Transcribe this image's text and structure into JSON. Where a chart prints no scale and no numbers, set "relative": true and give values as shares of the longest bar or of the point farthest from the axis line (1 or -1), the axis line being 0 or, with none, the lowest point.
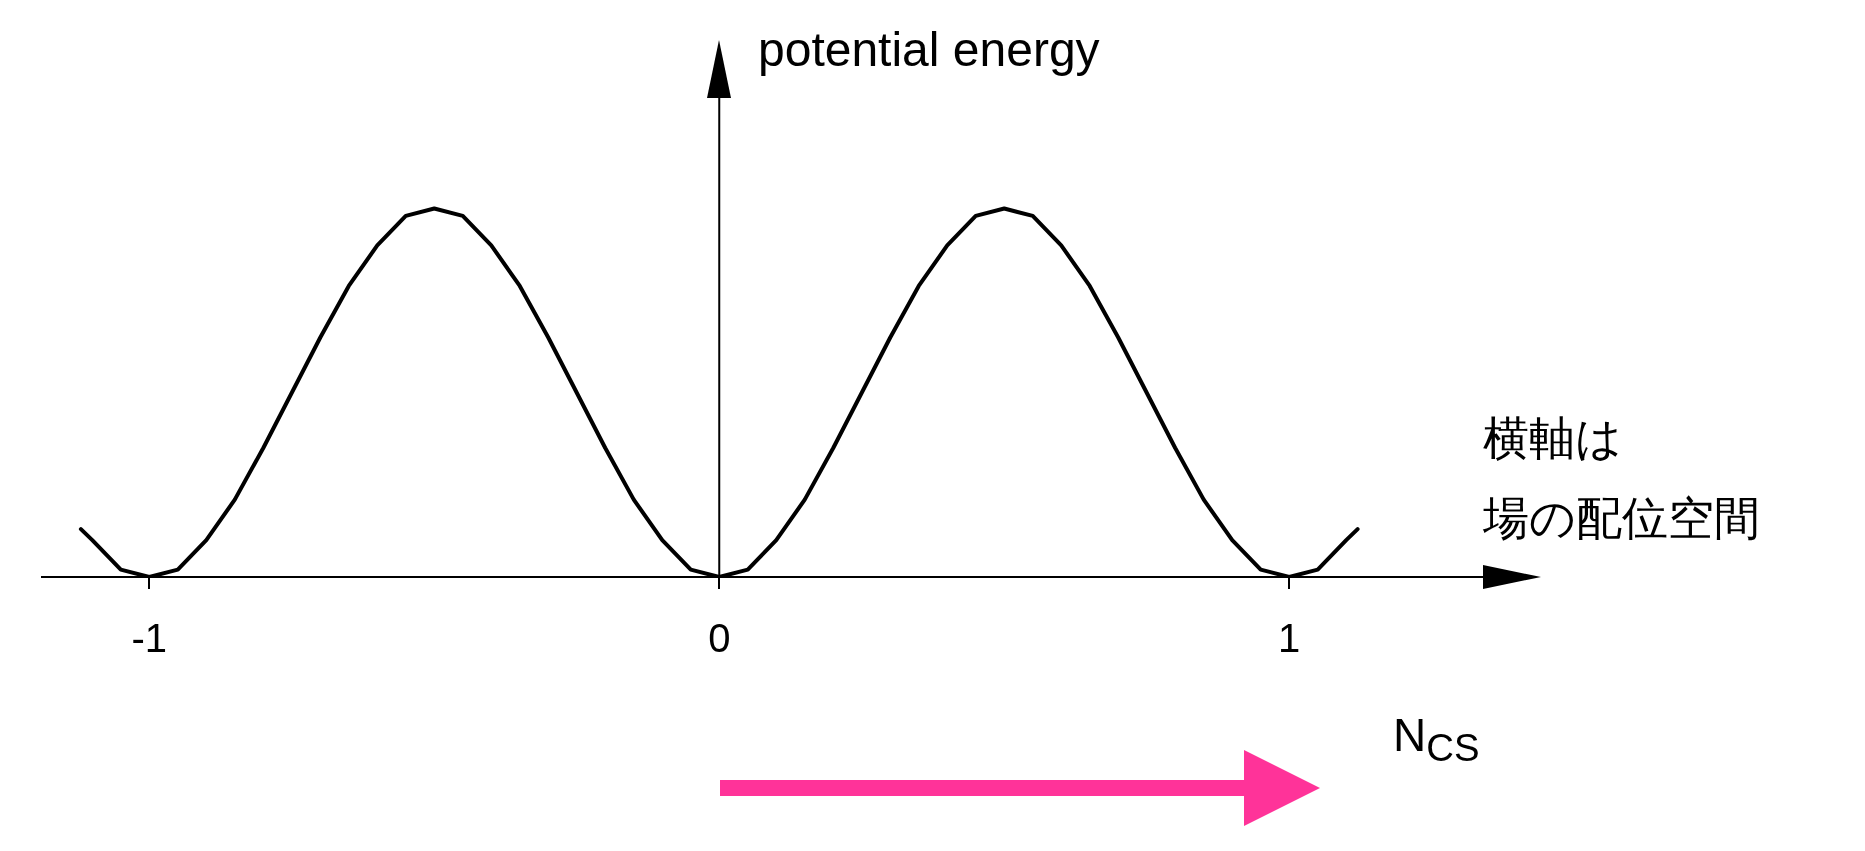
{
  "chart_data": {
    "type": "line",
    "ylabel": "potential energy",
    "xlabel": "N$_{CS}$",
    "annotations": [
      "横軸は",
      "場の配位空間"
    ],
    "relative": true,
    "tick_labels": "x",
    "line_style": "solid",
    "xlim": [
      -1.19,
      1.34
    ],
    "xticks": [
      -1,
      0,
      1
    ],
    "x": [
      -1.12,
      -1.1,
      -1.05,
      -1,
      -0.95,
      -0.9,
      -0.85,
      -0.8,
      -0.75,
      -0.7,
      -0.65,
      -0.6,
      -0.55,
      -0.5,
      -0.45,
      -0.4,
      -0.35,
      -0.3,
      -0.25,
      -0.2,
      -0.15,
      -0.1,
      -0.05,
      0,
      0.05,
      0.1,
      0.15,
      0.2,
      0.25,
      0.3,
      0.35,
      0.4,
      0.45,
      0.5,
      0.55,
      0.6,
      0.65,
      0.7,
      0.75,
      0.8,
      0.85,
      0.9,
      0.95,
      1,
      1.05,
      1.1,
      1.12
    ],
    "series": [
      {
        "color": "#000000",
        "values": [
          0.13,
          0.1,
          0.02,
          0,
          0.02,
          0.1,
          0.21,
          0.35,
          0.5,
          0.65,
          0.79,
          0.9,
          0.98,
          1,
          0.98,
          0.9,
          0.79,
          0.65,
          0.5,
          0.35,
          0.21,
          0.1,
          0.02,
          0,
          0.02,
          0.1,
          0.21,
          0.35,
          0.5,
          0.65,
          0.79,
          0.9,
          0.98,
          1,
          0.98,
          0.9,
          0.79,
          0.65,
          0.5,
          0.35,
          0.21,
          0.1,
          0.02,
          0,
          0.02,
          0.1,
          0.13
        ]
      }
    ]
  }
}
